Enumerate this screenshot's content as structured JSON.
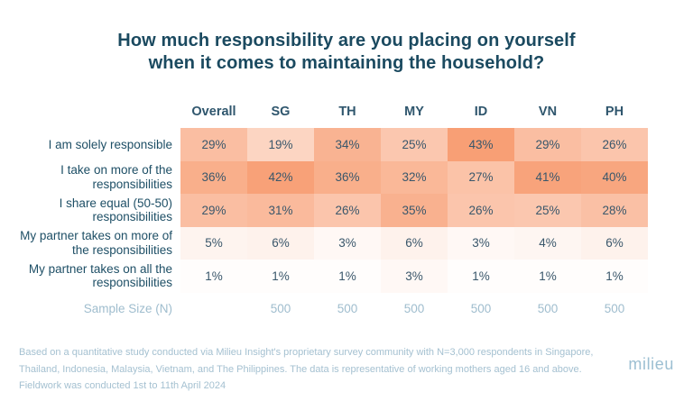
{
  "title": {
    "lines": [
      "How much responsibility are you placing on yourself",
      "when it comes to maintaining the household?"
    ],
    "color": "#1B4A60"
  },
  "chart_data": {
    "type": "heatmap",
    "title": "How much responsibility are you placing on yourself when it comes to maintaining the household?",
    "columns": [
      "Overall",
      "SG",
      "TH",
      "MY",
      "ID",
      "VN",
      "PH"
    ],
    "rows": [
      {
        "label": "I am solely responsible",
        "values": [
          29,
          19,
          34,
          25,
          43,
          29,
          26
        ]
      },
      {
        "label": "I take on more of the responsibilities",
        "values": [
          36,
          42,
          36,
          32,
          27,
          41,
          40
        ]
      },
      {
        "label": "I share equal (50-50) responsibilities",
        "values": [
          29,
          31,
          26,
          35,
          26,
          25,
          28
        ]
      },
      {
        "label": "My partner takes on more of the responsibilities",
        "values": [
          5,
          6,
          3,
          6,
          3,
          4,
          6
        ]
      },
      {
        "label": "My partner takes on all the responsibilities",
        "values": [
          1,
          1,
          1,
          3,
          1,
          1,
          1
        ]
      }
    ],
    "value_suffix": "%",
    "sample_size": {
      "label": "Sample Size (N)",
      "values": [
        "",
        "500",
        "500",
        "500",
        "500",
        "500",
        "500"
      ]
    },
    "color_scale": {
      "min_color": "#FFFFFF",
      "max_color": "#F89F75",
      "min_value": 0,
      "max_value": 43
    },
    "legend": false,
    "grid": false
  },
  "footer": {
    "lines": [
      "Based on a quantitative study conducted via Milieu Insight's proprietary survey community with N=3,000 respondents in Singapore,",
      "Thailand, Indonesia, Malaysia, Vietnam, and The Philippines. The data is representative of working mothers aged 16 and above.",
      "Fieldwork was conducted 1st to 11th April 2024"
    ],
    "color": "#A5C1D1"
  },
  "logo": {
    "text": "milieu",
    "color": "#9CBFD2"
  }
}
